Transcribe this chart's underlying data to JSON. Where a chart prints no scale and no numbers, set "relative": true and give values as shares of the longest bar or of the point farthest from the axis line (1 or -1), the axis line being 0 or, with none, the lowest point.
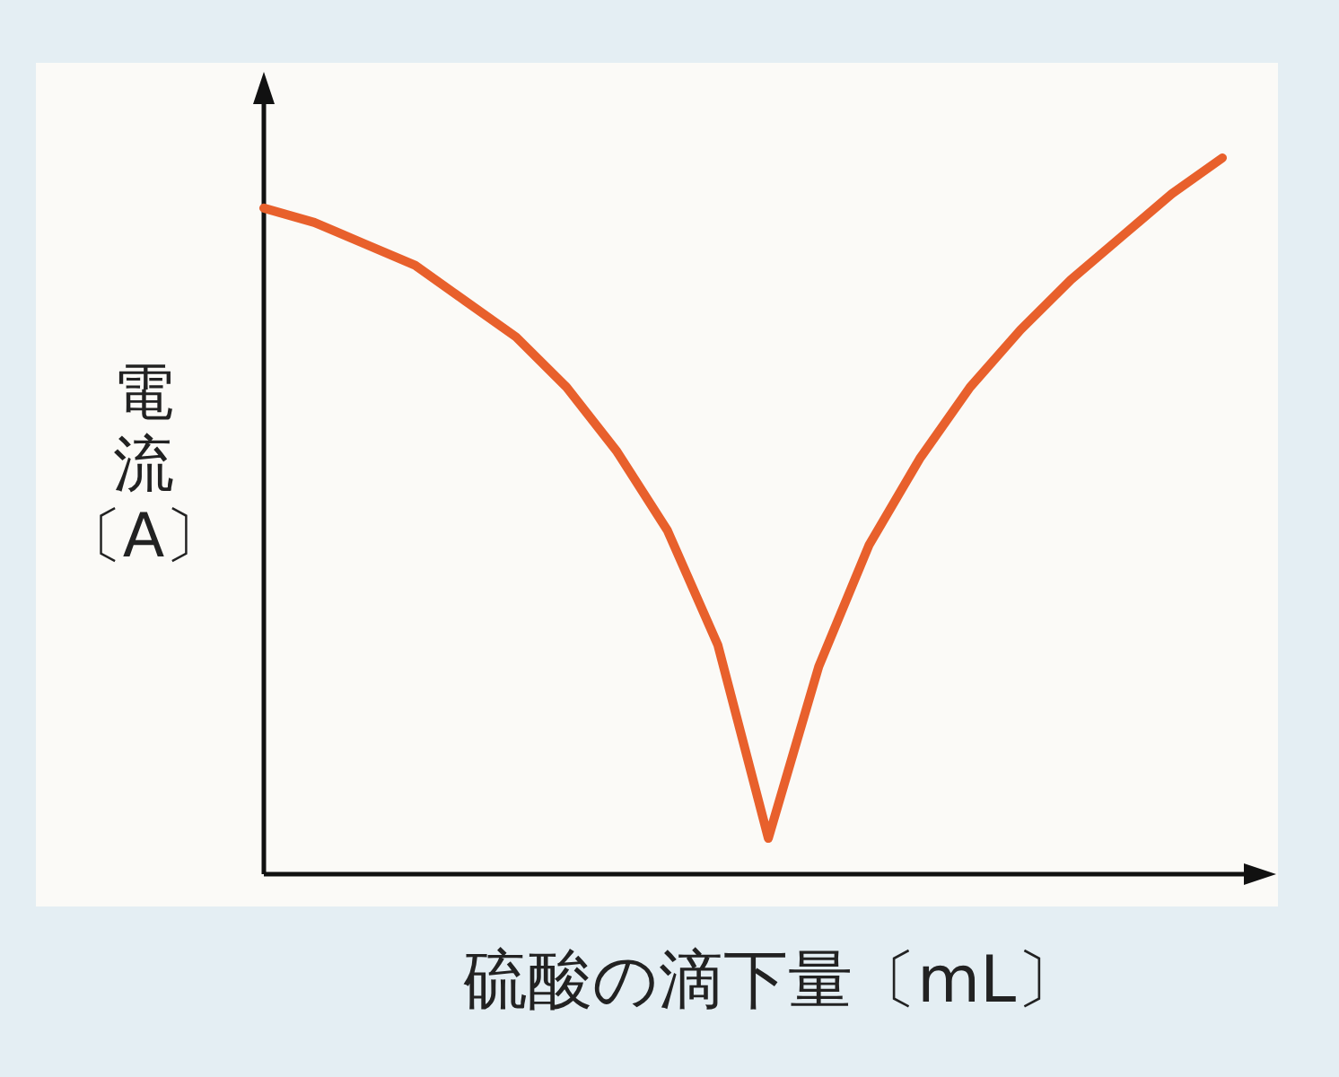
{
  "chart_data": {
    "type": "line",
    "relative": true,
    "xlabel": "硫酸の滴下量〔mL〕",
    "ylabel": "電流〔A〕",
    "categories": [
      null,
      null,
      null,
      null,
      null,
      null,
      null,
      null,
      null,
      null,
      null,
      null,
      null,
      null,
      null,
      null,
      null,
      null,
      null,
      null
    ],
    "color": "#e8602c",
    "values": [
      0.93,
      0.91,
      0.88,
      0.85,
      0.8,
      0.75,
      0.68,
      0.59,
      0.48,
      0.32,
      0.05,
      0.29,
      0.46,
      0.58,
      0.68,
      0.76,
      0.83,
      0.89,
      0.95,
      1
    ]
  }
}
